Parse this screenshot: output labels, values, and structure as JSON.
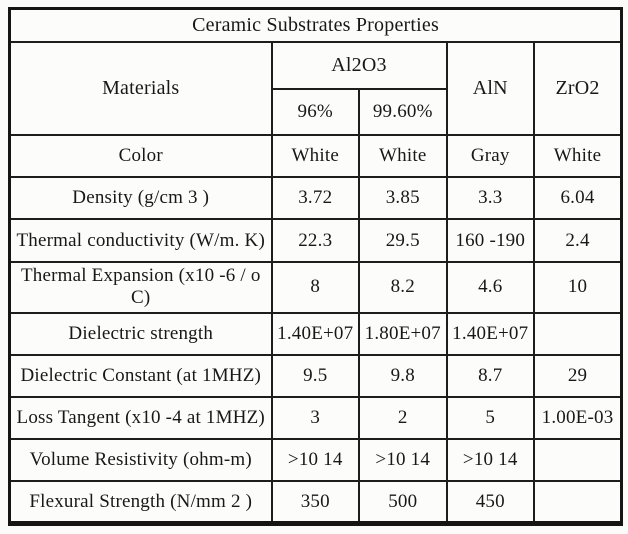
{
  "table": {
    "title": "Ceramic Substrates Properties",
    "header": {
      "materials_label": "Materials",
      "al2o3_label": "Al2O3",
      "al2o3_sub": [
        "96%",
        "99.60%"
      ],
      "aln_label": "AlN",
      "zro2_label": "ZrO2"
    },
    "rows": [
      {
        "property": "Color",
        "values": [
          "White",
          "White",
          "Gray",
          "White"
        ]
      },
      {
        "property": "Density (g/cm 3 )",
        "values": [
          "3.72",
          "3.85",
          "3.3",
          "6.04"
        ]
      },
      {
        "property": "Thermal conductivity (W/m. K)",
        "values": [
          "22.3",
          "29.5",
          "160 -190",
          "2.4"
        ]
      },
      {
        "property": "Thermal Expansion (x10 -6 / o C)",
        "values": [
          "8",
          "8.2",
          "4.6",
          "10"
        ]
      },
      {
        "property": "Dielectric strength",
        "values": [
          "1.40E+07",
          "1.80E+07",
          "1.40E+07",
          ""
        ]
      },
      {
        "property": "Dielectric Constant (at 1MHZ)",
        "values": [
          "9.5",
          "9.8",
          "8.7",
          "29"
        ]
      },
      {
        "property": "Loss Tangent (x10 -4 at 1MHZ)",
        "values": [
          "3",
          "2",
          "5",
          "1.00E-03"
        ]
      },
      {
        "property": "Volume Resistivity (ohm-m)",
        "values": [
          ">10 14",
          ">10 14",
          ">10 14",
          ""
        ]
      },
      {
        "property": "Flexural Strength (N/mm 2 )",
        "values": [
          "350",
          "500",
          "450",
          ""
        ]
      }
    ],
    "colors": {
      "border": "#1d1d1d",
      "background": "#fcfcfb",
      "text": "#181818"
    }
  }
}
